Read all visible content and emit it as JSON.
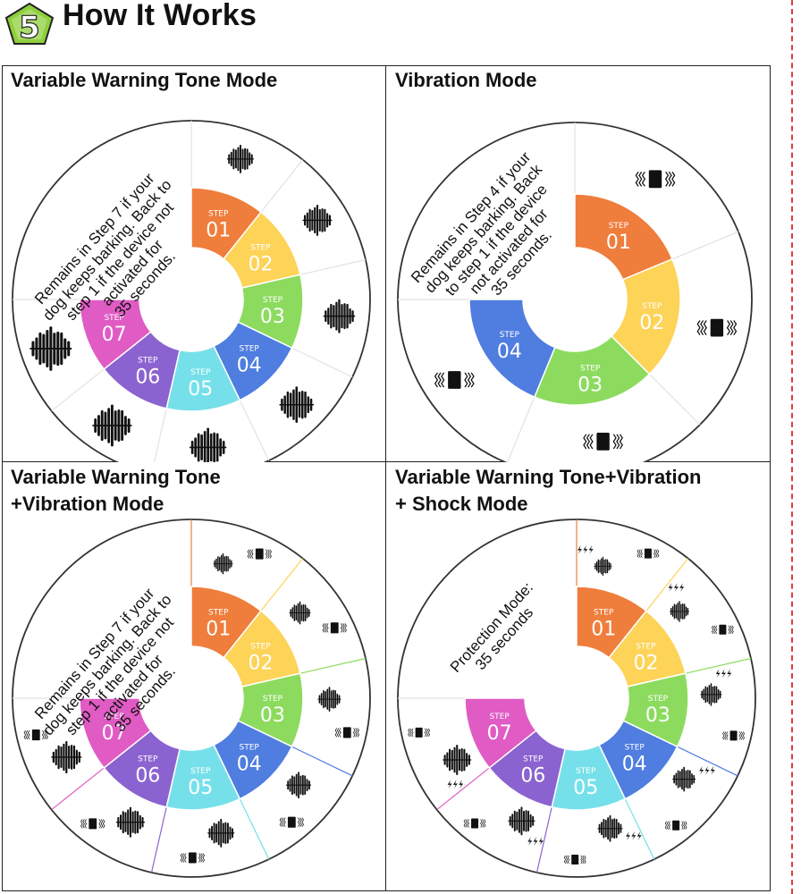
{
  "header": {
    "step_number": "5",
    "title": "How It Works",
    "badge_color": "#8fcf3c"
  },
  "step_colors": {
    "01": "#ef7d3c",
    "02": "#fdd358",
    "03": "#8cdb5f",
    "04": "#4f7de0",
    "05": "#76e0ea",
    "06": "#8b63d0",
    "07": "#e05bc4"
  },
  "step_label": "STEP",
  "panels": [
    {
      "title_line1": "Variable Warning Tone Mode",
      "title_line2": "",
      "steps": [
        "01",
        "02",
        "03",
        "04",
        "05",
        "06",
        "07"
      ],
      "note_lines": [
        "Remains in Step 7 if your",
        "dog keeps barking. Back to",
        "step 1 if the device not",
        "activated for",
        "35 seconds."
      ],
      "icons": [
        "sound-wave",
        "sound-wave",
        "sound-wave",
        "sound-wave",
        "sound-wave",
        "sound-wave",
        "sound-wave"
      ]
    },
    {
      "title_line1": "Vibration Mode",
      "title_line2": "",
      "steps": [
        "01",
        "02",
        "03",
        "04"
      ],
      "note_lines": [
        "Remains in Step 4 if your",
        "dog keeps barking. Back",
        "to step 1 if the device",
        "not activated for",
        "35 seconds."
      ],
      "icons": [
        "vibration",
        "vibration",
        "vibration",
        "vibration"
      ]
    },
    {
      "title_line1": "Variable Warning Tone",
      "title_line2": "+Vibration Mode",
      "steps": [
        "01",
        "02",
        "03",
        "04",
        "05",
        "06",
        "07"
      ],
      "note_lines": [
        "Remains in Step 7 if your",
        "dog keeps barking. Back to",
        "step 1 if the device not",
        "activated for",
        "35 seconds."
      ],
      "icons": [
        "sound-vibration",
        "sound-vibration",
        "sound-vibration",
        "sound-vibration",
        "sound-vibration",
        "sound-vibration",
        "sound-vibration"
      ]
    },
    {
      "title_line1": "Variable Warning Tone+Vibration",
      "title_line2": "+ Shock Mode",
      "steps": [
        "01",
        "02",
        "03",
        "04",
        "05",
        "06",
        "07"
      ],
      "note_lines": [
        "Protection Mode:",
        "35 seconds"
      ],
      "icons": [
        "sound-vibration-shock",
        "sound-vibration-shock",
        "sound-vibration-shock",
        "sound-vibration-shock",
        "sound-vibration-shock",
        "sound-vibration-shock",
        "sound-vibration-shock"
      ]
    }
  ]
}
